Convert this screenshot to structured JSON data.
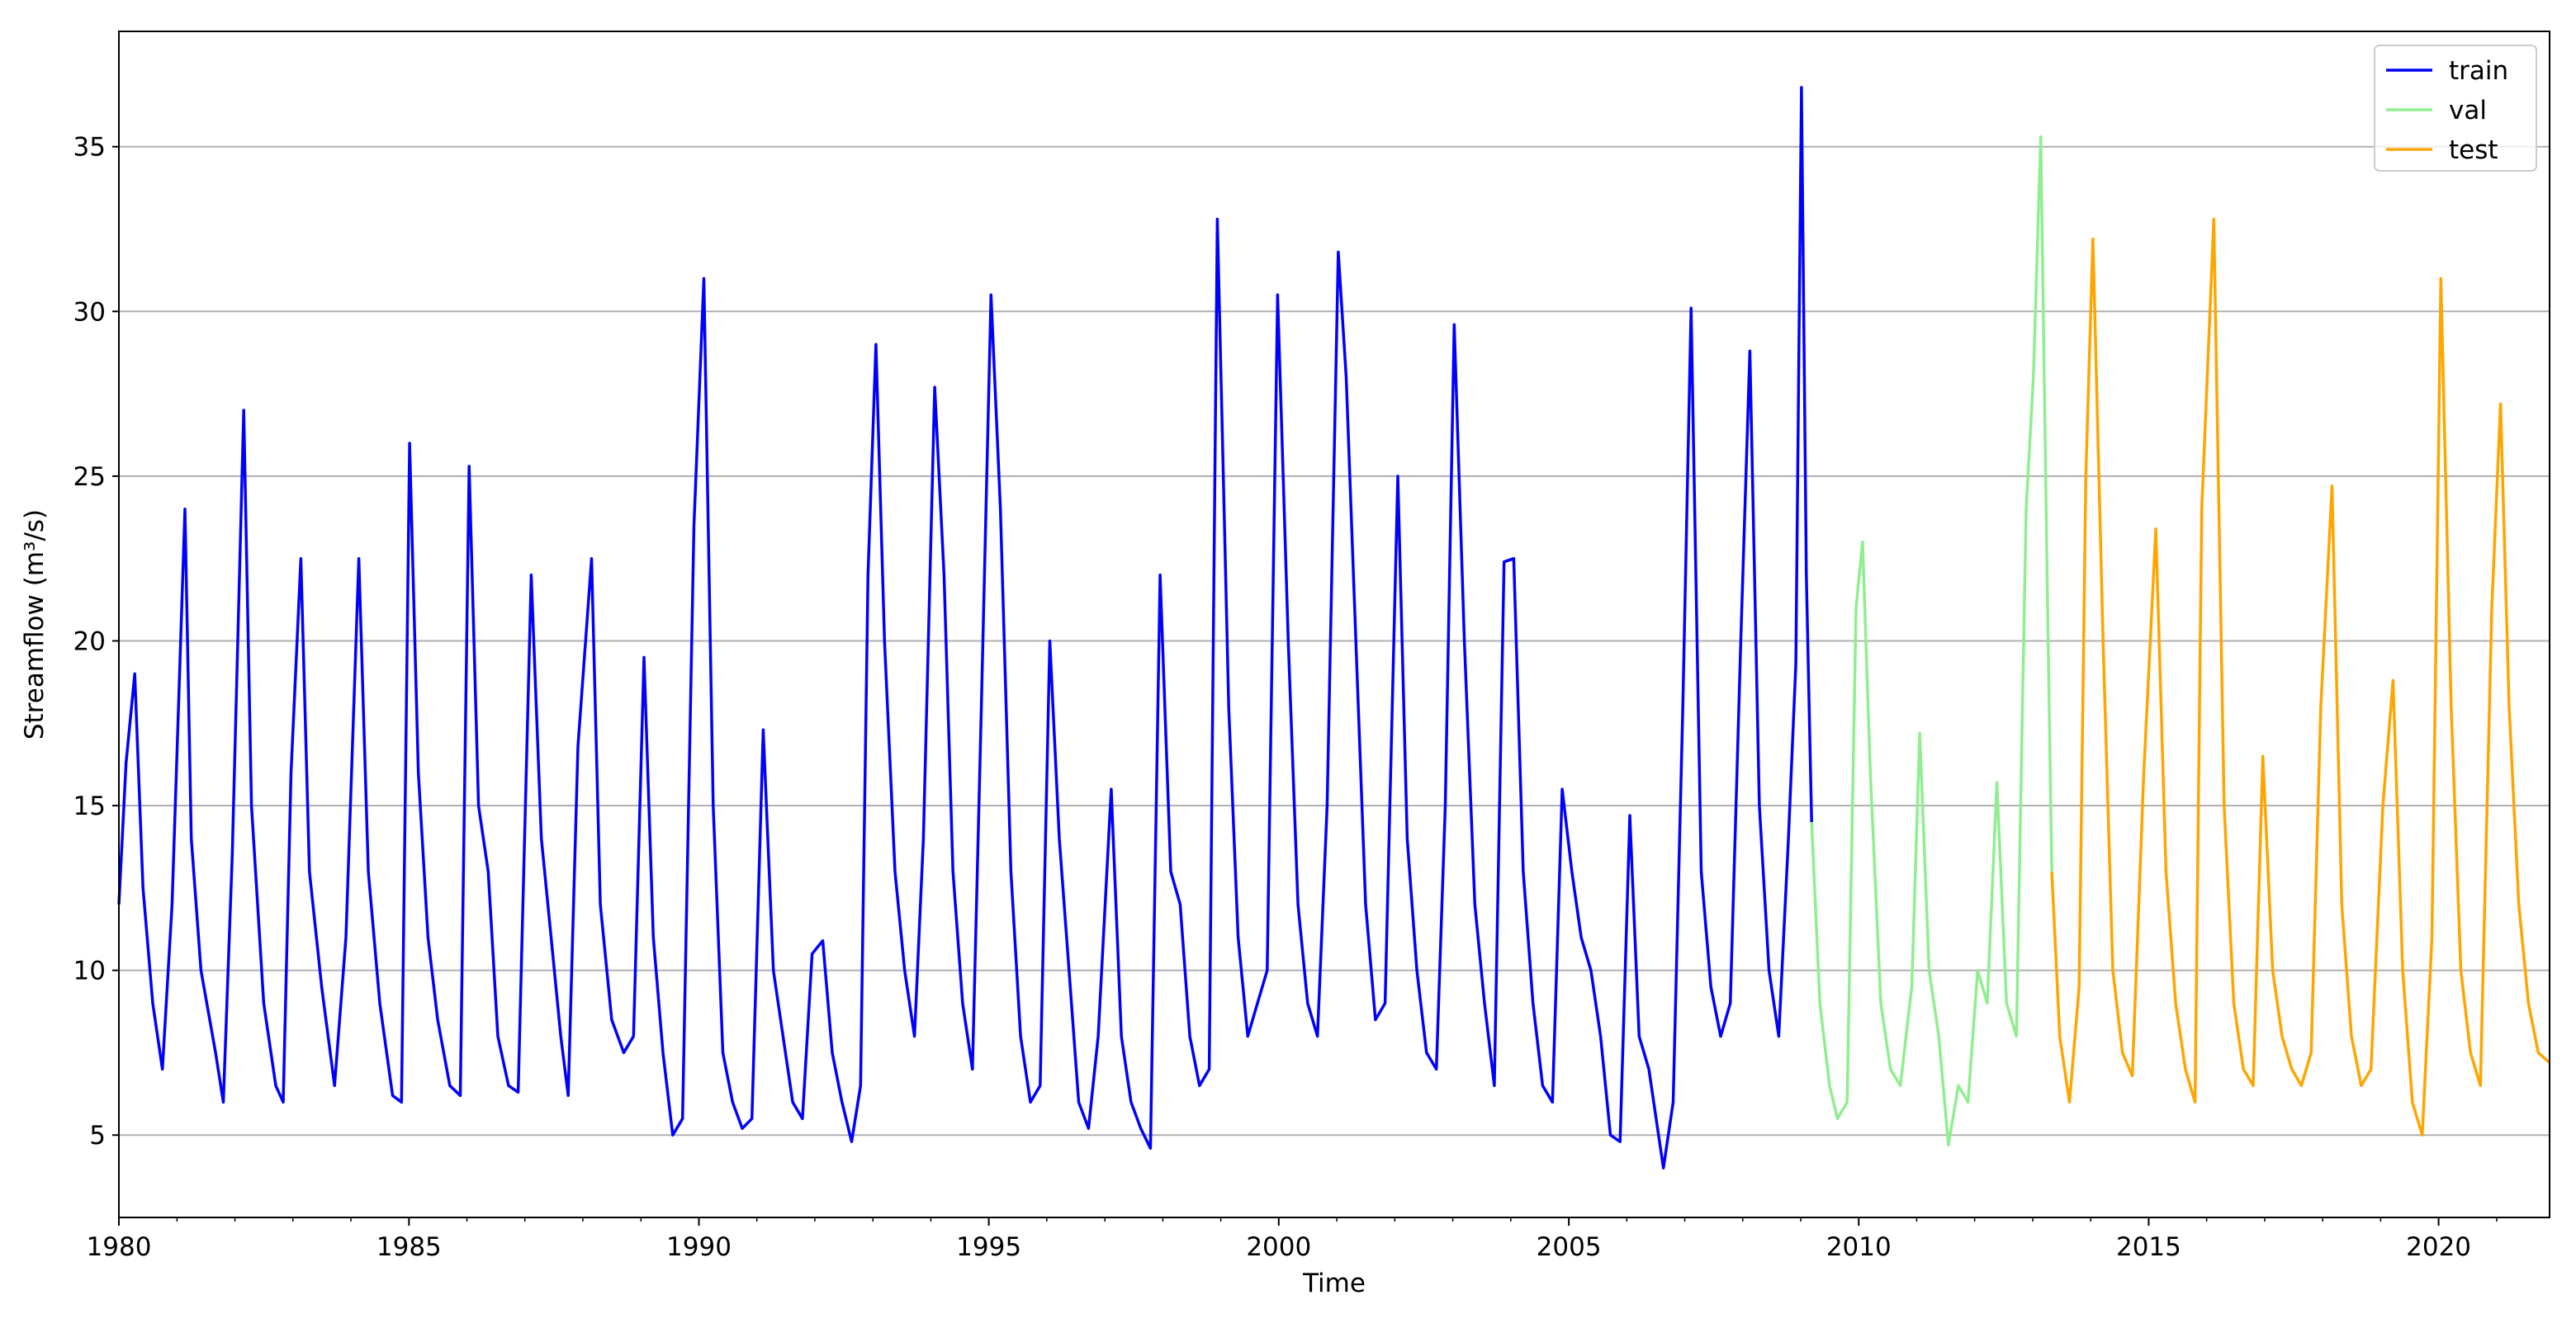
{
  "chart_data": {
    "type": "line",
    "title": "",
    "xlabel": "Time",
    "ylabel": "Streamflow (m³/s)",
    "xlim": [
      "1980-01-01",
      "2021-11-30"
    ],
    "ylim": [
      2.5,
      38.5
    ],
    "grid": "horizontal",
    "legend_placement": "top-right",
    "xticks": [
      {
        "label": "1980",
        "value": "1980-01-01"
      },
      {
        "label": "1985",
        "value": "1985-01-01"
      },
      {
        "label": "1990",
        "value": "1990-01-01"
      },
      {
        "label": "1995",
        "value": "1995-01-01"
      },
      {
        "label": "2000",
        "value": "2000-01-01"
      },
      {
        "label": "2005",
        "value": "2005-01-01"
      },
      {
        "label": "2010",
        "value": "2010-01-01"
      },
      {
        "label": "2015",
        "value": "2015-01-01"
      },
      {
        "label": "2020",
        "value": "2020-01-01"
      }
    ],
    "yticks": [
      {
        "label": "5",
        "value": 5
      },
      {
        "label": "10",
        "value": 10
      },
      {
        "label": "15",
        "value": 15
      },
      {
        "label": "20",
        "value": 20
      },
      {
        "label": "25",
        "value": 25
      },
      {
        "label": "30",
        "value": 30
      },
      {
        "label": "35",
        "value": 35
      }
    ],
    "series": [
      {
        "name": "train",
        "color": "#0000ff",
        "points": [
          [
            "1980-01-01",
            12.0
          ],
          [
            "1980-02-15",
            16.3
          ],
          [
            "1980-04-10",
            19.0
          ],
          [
            "1980-06-01",
            12.5
          ],
          [
            "1980-08-01",
            9.0
          ],
          [
            "1980-10-01",
            7.0
          ],
          [
            "1980-12-01",
            12.0
          ],
          [
            "1981-02-20",
            24.0
          ],
          [
            "1981-04-01",
            14.0
          ],
          [
            "1981-06-01",
            10.0
          ],
          [
            "1981-09-01",
            7.5
          ],
          [
            "1981-10-20",
            6.0
          ],
          [
            "1981-12-15",
            13.5
          ],
          [
            "1982-02-25",
            27.0
          ],
          [
            "1982-04-15",
            15.0
          ],
          [
            "1982-07-01",
            9.0
          ],
          [
            "1982-09-15",
            6.5
          ],
          [
            "1982-11-01",
            6.0
          ],
          [
            "1982-12-20",
            16.0
          ],
          [
            "1983-02-20",
            22.5
          ],
          [
            "1983-04-15",
            13.0
          ],
          [
            "1983-07-01",
            9.5
          ],
          [
            "1983-09-20",
            6.5
          ],
          [
            "1983-12-01",
            11.0
          ],
          [
            "1984-02-20",
            22.5
          ],
          [
            "1984-04-20",
            13.0
          ],
          [
            "1984-07-01",
            9.0
          ],
          [
            "1984-09-20",
            6.2
          ],
          [
            "1984-11-15",
            6.0
          ],
          [
            "1985-01-05",
            26.0
          ],
          [
            "1985-03-01",
            16.0
          ],
          [
            "1985-05-01",
            11.0
          ],
          [
            "1985-07-01",
            8.5
          ],
          [
            "1985-09-15",
            6.5
          ],
          [
            "1985-11-20",
            6.2
          ],
          [
            "1986-01-15",
            25.3
          ],
          [
            "1986-03-15",
            15.0
          ],
          [
            "1986-05-15",
            13.0
          ],
          [
            "1986-07-15",
            8.0
          ],
          [
            "1986-09-20",
            6.5
          ],
          [
            "1986-11-20",
            6.3
          ],
          [
            "1987-02-10",
            22.0
          ],
          [
            "1987-04-15",
            14.0
          ],
          [
            "1987-06-15",
            11.0
          ],
          [
            "1987-08-15",
            8.0
          ],
          [
            "1987-10-01",
            6.2
          ],
          [
            "1987-12-01",
            16.8
          ],
          [
            "1988-02-25",
            22.5
          ],
          [
            "1988-04-20",
            12.0
          ],
          [
            "1988-07-01",
            8.5
          ],
          [
            "1988-09-15",
            7.5
          ],
          [
            "1988-11-15",
            8.0
          ],
          [
            "1989-01-20",
            19.5
          ],
          [
            "1989-03-20",
            11.0
          ],
          [
            "1989-05-20",
            7.5
          ],
          [
            "1989-07-20",
            5.0
          ],
          [
            "1989-09-20",
            5.5
          ],
          [
            "1989-12-01",
            23.5
          ],
          [
            "1990-02-01",
            31.0
          ],
          [
            "1990-04-01",
            15.0
          ],
          [
            "1990-06-01",
            7.5
          ],
          [
            "1990-08-01",
            6.0
          ],
          [
            "1990-10-01",
            5.2
          ],
          [
            "1990-12-01",
            5.5
          ],
          [
            "1991-02-10",
            17.3
          ],
          [
            "1991-04-15",
            10.0
          ],
          [
            "1991-06-15",
            8.0
          ],
          [
            "1991-08-15",
            6.0
          ],
          [
            "1991-10-15",
            5.5
          ],
          [
            "1991-12-15",
            10.5
          ],
          [
            "1992-02-20",
            10.9
          ],
          [
            "1992-04-20",
            7.5
          ],
          [
            "1992-06-20",
            6.0
          ],
          [
            "1992-08-20",
            4.8
          ],
          [
            "1992-10-15",
            6.5
          ],
          [
            "1992-12-01",
            22.0
          ],
          [
            "1993-01-20",
            29.0
          ],
          [
            "1993-03-15",
            20.0
          ],
          [
            "1993-05-20",
            13.0
          ],
          [
            "1993-07-20",
            10.0
          ],
          [
            "1993-09-20",
            8.0
          ],
          [
            "1993-11-15",
            14.0
          ],
          [
            "1994-01-25",
            27.7
          ],
          [
            "1994-03-25",
            22.0
          ],
          [
            "1994-05-20",
            13.0
          ],
          [
            "1994-07-20",
            9.0
          ],
          [
            "1994-09-20",
            7.0
          ],
          [
            "1994-11-15",
            18.0
          ],
          [
            "1995-01-15",
            30.5
          ],
          [
            "1995-03-15",
            24.0
          ],
          [
            "1995-05-20",
            13.0
          ],
          [
            "1995-07-20",
            8.0
          ],
          [
            "1995-09-20",
            6.0
          ],
          [
            "1995-11-20",
            6.5
          ],
          [
            "1996-01-20",
            20.0
          ],
          [
            "1996-03-20",
            14.0
          ],
          [
            "1996-05-20",
            10.0
          ],
          [
            "1996-07-20",
            6.0
          ],
          [
            "1996-09-20",
            5.2
          ],
          [
            "1996-11-20",
            8.0
          ],
          [
            "1997-02-10",
            15.5
          ],
          [
            "1997-04-15",
            8.0
          ],
          [
            "1997-06-15",
            6.0
          ],
          [
            "1997-08-15",
            5.2
          ],
          [
            "1997-10-15",
            4.6
          ],
          [
            "1997-12-15",
            22.0
          ],
          [
            "1998-02-20",
            13.0
          ],
          [
            "1998-04-20",
            12.0
          ],
          [
            "1998-06-20",
            8.0
          ],
          [
            "1998-08-20",
            6.5
          ],
          [
            "1998-10-20",
            7.0
          ],
          [
            "1998-12-10",
            32.8
          ],
          [
            "1999-02-20",
            18.0
          ],
          [
            "1999-04-20",
            11.0
          ],
          [
            "1999-06-20",
            8.0
          ],
          [
            "1999-08-20",
            9.0
          ],
          [
            "1999-10-20",
            10.0
          ],
          [
            "1999-12-25",
            30.5
          ],
          [
            "2000-03-01",
            20.0
          ],
          [
            "2000-05-01",
            12.0
          ],
          [
            "2000-07-01",
            9.0
          ],
          [
            "2000-09-01",
            8.0
          ],
          [
            "2000-11-01",
            15.0
          ],
          [
            "2001-01-10",
            31.8
          ],
          [
            "2001-03-01",
            28.0
          ],
          [
            "2001-05-01",
            20.0
          ],
          [
            "2001-07-01",
            12.0
          ],
          [
            "2001-09-01",
            8.5
          ],
          [
            "2001-11-01",
            9.0
          ],
          [
            "2002-01-20",
            25.0
          ],
          [
            "2002-03-20",
            14.0
          ],
          [
            "2002-05-20",
            10.0
          ],
          [
            "2002-07-20",
            7.5
          ],
          [
            "2002-09-20",
            7.0
          ],
          [
            "2002-11-15",
            15.0
          ],
          [
            "2003-01-10",
            29.6
          ],
          [
            "2003-03-15",
            20.0
          ],
          [
            "2003-05-20",
            12.0
          ],
          [
            "2003-07-20",
            9.0
          ],
          [
            "2003-09-20",
            6.5
          ],
          [
            "2003-11-20",
            22.4
          ],
          [
            "2004-01-20",
            22.5
          ],
          [
            "2004-03-20",
            13.0
          ],
          [
            "2004-05-20",
            9.0
          ],
          [
            "2004-07-20",
            6.5
          ],
          [
            "2004-09-20",
            6.0
          ],
          [
            "2004-11-20",
            15.5
          ],
          [
            "2005-01-20",
            13.0
          ],
          [
            "2005-03-20",
            11.0
          ],
          [
            "2005-05-20",
            10.0
          ],
          [
            "2005-07-20",
            8.0
          ],
          [
            "2005-09-20",
            5.0
          ],
          [
            "2005-11-20",
            4.8
          ],
          [
            "2006-01-20",
            14.7
          ],
          [
            "2006-03-20",
            8.0
          ],
          [
            "2006-05-20",
            7.0
          ],
          [
            "2006-07-20",
            5.0
          ],
          [
            "2006-08-20",
            4.0
          ],
          [
            "2006-10-20",
            6.0
          ],
          [
            "2006-12-20",
            18.0
          ],
          [
            "2007-02-10",
            30.1
          ],
          [
            "2007-04-15",
            13.0
          ],
          [
            "2007-06-15",
            9.5
          ],
          [
            "2007-08-15",
            8.0
          ],
          [
            "2007-10-15",
            9.0
          ],
          [
            "2007-12-20",
            20.0
          ],
          [
            "2008-02-15",
            28.8
          ],
          [
            "2008-04-15",
            15.0
          ],
          [
            "2008-06-15",
            10.0
          ],
          [
            "2008-08-15",
            8.0
          ],
          [
            "2008-10-15",
            14.0
          ],
          [
            "2008-12-01",
            19.3
          ],
          [
            "2009-01-05",
            36.8
          ],
          [
            "2009-02-05",
            22.0
          ],
          [
            "2009-03-10",
            14.5
          ]
        ]
      },
      {
        "name": "val",
        "color": "#90ee90",
        "points": [
          [
            "2009-03-10",
            14.5
          ],
          [
            "2009-05-01",
            9.0
          ],
          [
            "2009-07-01",
            6.5
          ],
          [
            "2009-08-20",
            5.5
          ],
          [
            "2009-10-20",
            6.0
          ],
          [
            "2009-12-15",
            21.0
          ],
          [
            "2010-01-25",
            23.0
          ],
          [
            "2010-03-15",
            16.0
          ],
          [
            "2010-05-20",
            9.0
          ],
          [
            "2010-07-20",
            7.0
          ],
          [
            "2010-09-20",
            6.5
          ],
          [
            "2010-12-01",
            9.5
          ],
          [
            "2011-01-20",
            17.2
          ],
          [
            "2011-03-20",
            10.0
          ],
          [
            "2011-05-20",
            8.0
          ],
          [
            "2011-07-20",
            4.7
          ],
          [
            "2011-09-20",
            6.5
          ],
          [
            "2011-11-20",
            6.0
          ],
          [
            "2012-01-20",
            10.0
          ],
          [
            "2012-03-20",
            9.0
          ],
          [
            "2012-05-20",
            15.7
          ],
          [
            "2012-07-20",
            9.0
          ],
          [
            "2012-09-20",
            8.0
          ],
          [
            "2012-11-20",
            24.0
          ],
          [
            "2013-01-05",
            28.0
          ],
          [
            "2013-02-20",
            35.3
          ],
          [
            "2013-04-01",
            22.0
          ],
          [
            "2013-05-01",
            13.0
          ]
        ]
      },
      {
        "name": "test",
        "color": "#ffa500",
        "points": [
          [
            "2013-05-01",
            13.0
          ],
          [
            "2013-06-20",
            8.0
          ],
          [
            "2013-08-20",
            6.0
          ],
          [
            "2013-10-20",
            9.5
          ],
          [
            "2013-12-01",
            25.0
          ],
          [
            "2014-01-15",
            32.2
          ],
          [
            "2014-03-20",
            20.0
          ],
          [
            "2014-05-20",
            10.0
          ],
          [
            "2014-07-20",
            7.5
          ],
          [
            "2014-09-20",
            6.8
          ],
          [
            "2014-12-01",
            16.0
          ],
          [
            "2015-02-15",
            23.4
          ],
          [
            "2015-04-20",
            13.0
          ],
          [
            "2015-06-20",
            9.0
          ],
          [
            "2015-08-20",
            7.0
          ],
          [
            "2015-10-20",
            6.0
          ],
          [
            "2015-12-01",
            24.0
          ],
          [
            "2016-02-15",
            32.8
          ],
          [
            "2016-04-20",
            15.0
          ],
          [
            "2016-06-20",
            9.0
          ],
          [
            "2016-08-20",
            7.0
          ],
          [
            "2016-10-20",
            6.5
          ],
          [
            "2016-12-20",
            16.5
          ],
          [
            "2017-02-20",
            10.0
          ],
          [
            "2017-04-20",
            8.0
          ],
          [
            "2017-06-20",
            7.0
          ],
          [
            "2017-08-20",
            6.5
          ],
          [
            "2017-10-20",
            7.5
          ],
          [
            "2017-12-20",
            18.0
          ],
          [
            "2018-03-01",
            24.7
          ],
          [
            "2018-05-01",
            12.0
          ],
          [
            "2018-07-01",
            8.0
          ],
          [
            "2018-09-01",
            6.5
          ],
          [
            "2018-11-01",
            7.0
          ],
          [
            "2019-01-15",
            15.0
          ],
          [
            "2019-03-20",
            18.8
          ],
          [
            "2019-05-20",
            10.0
          ],
          [
            "2019-07-20",
            6.0
          ],
          [
            "2019-09-20",
            5.0
          ],
          [
            "2019-11-20",
            11.0
          ],
          [
            "2020-01-15",
            31.0
          ],
          [
            "2020-03-20",
            18.0
          ],
          [
            "2020-05-20",
            10.0
          ],
          [
            "2020-07-20",
            7.5
          ],
          [
            "2020-09-20",
            6.5
          ],
          [
            "2020-12-01",
            21.0
          ],
          [
            "2021-01-25",
            27.2
          ],
          [
            "2021-03-20",
            18.0
          ],
          [
            "2021-05-20",
            12.0
          ],
          [
            "2021-07-20",
            9.0
          ],
          [
            "2021-09-20",
            7.5
          ],
          [
            "2021-11-30",
            7.2
          ]
        ]
      }
    ]
  }
}
